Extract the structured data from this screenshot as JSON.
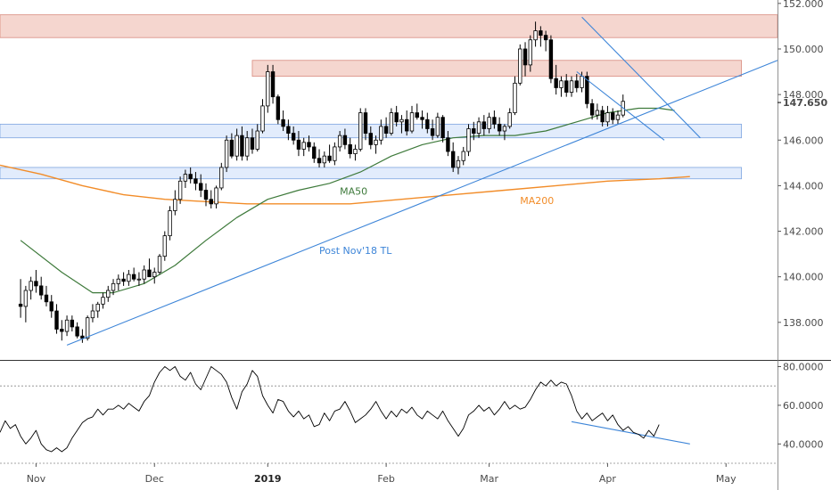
{
  "chart_data": {
    "type": "candlestick",
    "title": "",
    "colors": {
      "up_fill": "#ffffff",
      "down_fill": "#000000",
      "candle_stroke": "#000000",
      "ma50": "#3e7a3b",
      "ma200": "#f28c28",
      "trendline": "#3d85d8",
      "rsi": "#000000",
      "resistance_zone": "#f3cfc7",
      "support_zone": "#dde9fb",
      "price_tag": "#000000"
    },
    "price_axis": {
      "ticks": [
        "152.000",
        "150.000",
        "148.000",
        "146.000",
        "144.000",
        "142.000",
        "140.000",
        "138.000"
      ],
      "tick_values": [
        152,
        150,
        148,
        146,
        144,
        142,
        140,
        138
      ],
      "ylim": [
        136.35,
        152.15
      ],
      "last_price": "147.650",
      "last_price_value": 147.65
    },
    "rsi_axis": {
      "ticks": [
        "80.0000",
        "60.0000",
        "40.0000"
      ],
      "tick_values": [
        80,
        60,
        40
      ],
      "ylim": [
        30,
        83
      ],
      "ref_lines": [
        70,
        30
      ]
    },
    "x_axis": {
      "labels": [
        "Nov",
        "Dec",
        "2019",
        "Feb",
        "Mar",
        "Apr",
        "May"
      ],
      "label_index": [
        3,
        26,
        48,
        71,
        91,
        114,
        137
      ],
      "bold_label": "2019",
      "xlim": [
        -4,
        147
      ]
    },
    "zones": [
      {
        "kind": "resistance",
        "from_index": -4,
        "to_index": 147,
        "low": 150.5,
        "high": 151.5
      },
      {
        "kind": "resistance",
        "from_index": 45,
        "to_index": 140,
        "low": 148.8,
        "high": 149.5
      },
      {
        "kind": "support",
        "from_index": -4,
        "to_index": 140,
        "low": 146.1,
        "high": 146.7
      },
      {
        "kind": "support",
        "from_index": -4,
        "to_index": 140,
        "low": 144.3,
        "high": 144.8
      }
    ],
    "annotations": [
      {
        "text": "MA50",
        "index": 62,
        "value": 143.6,
        "color_key": "ma50"
      },
      {
        "text": "MA200",
        "index": 97,
        "value": 143.2,
        "color_key": "ma200"
      },
      {
        "text": "Post Nov'18 TL",
        "index": 58,
        "value": 141.0,
        "color_key": "trendline"
      }
    ],
    "trendlines": [
      {
        "name": "Post Nov'18 TL",
        "points": [
          [
            9,
            137.0
          ],
          [
            147,
            149.5
          ]
        ],
        "color_key": "trendline"
      },
      {
        "name": "channel-upper",
        "points": [
          [
            109,
            151.4
          ],
          [
            132,
            146.1
          ]
        ],
        "color_key": "trendline"
      },
      {
        "name": "channel-lower",
        "points": [
          [
            108,
            149.0
          ],
          [
            125,
            146.0
          ]
        ],
        "color_key": "trendline"
      },
      {
        "name": "rsi-divergence",
        "points": [
          [
            107,
            51.5
          ],
          [
            130,
            40.0
          ]
        ],
        "color_key": "trendline",
        "pane": "rsi"
      }
    ],
    "ohlc": [
      [
        138.8,
        139.9,
        138.2,
        138.7
      ],
      [
        138.7,
        139.6,
        138.0,
        139.4
      ],
      [
        139.4,
        140.0,
        139.0,
        139.8
      ],
      [
        139.8,
        140.3,
        139.3,
        139.6
      ],
      [
        139.6,
        140.0,
        139.0,
        139.2
      ],
      [
        139.2,
        139.6,
        138.7,
        138.9
      ],
      [
        138.9,
        139.2,
        138.2,
        138.5
      ],
      [
        138.5,
        138.8,
        137.5,
        137.7
      ],
      [
        137.7,
        138.1,
        137.2,
        137.6
      ],
      [
        137.6,
        138.3,
        137.4,
        138.1
      ],
      [
        138.1,
        138.3,
        137.6,
        137.8
      ],
      [
        137.8,
        138.0,
        137.3,
        137.4
      ],
      [
        137.4,
        137.7,
        137.1,
        137.3
      ],
      [
        137.3,
        138.3,
        137.2,
        138.2
      ],
      [
        138.2,
        138.8,
        138.0,
        138.5
      ],
      [
        138.5,
        138.9,
        138.2,
        138.8
      ],
      [
        138.8,
        139.3,
        138.6,
        139.1
      ],
      [
        139.1,
        139.6,
        138.9,
        139.4
      ],
      [
        139.4,
        139.9,
        139.2,
        139.7
      ],
      [
        139.7,
        140.1,
        139.4,
        139.9
      ],
      [
        139.9,
        140.2,
        139.6,
        139.8
      ],
      [
        139.8,
        140.3,
        139.6,
        140.1
      ],
      [
        140.1,
        140.4,
        139.8,
        139.9
      ],
      [
        139.9,
        140.2,
        139.6,
        139.9
      ],
      [
        139.9,
        140.5,
        139.7,
        140.3
      ],
      [
        140.3,
        140.8,
        140.1,
        140.0
      ],
      [
        140.0,
        140.4,
        139.7,
        140.2
      ],
      [
        140.2,
        141.0,
        140.1,
        140.9
      ],
      [
        140.9,
        142.0,
        140.7,
        141.8
      ],
      [
        141.8,
        143.1,
        141.6,
        142.9
      ],
      [
        142.9,
        143.8,
        142.7,
        143.4
      ],
      [
        143.4,
        144.4,
        143.2,
        144.2
      ],
      [
        144.2,
        144.7,
        143.9,
        144.5
      ],
      [
        144.5,
        144.8,
        144.1,
        144.3
      ],
      [
        144.3,
        144.6,
        143.8,
        144.1
      ],
      [
        144.1,
        144.5,
        143.5,
        143.8
      ],
      [
        143.8,
        144.1,
        143.1,
        143.4
      ],
      [
        143.4,
        143.8,
        143.0,
        143.2
      ],
      [
        143.2,
        144.0,
        143.0,
        143.9
      ],
      [
        143.9,
        145.0,
        143.8,
        144.8
      ],
      [
        144.8,
        146.2,
        144.6,
        146.0
      ],
      [
        146.0,
        146.3,
        145.2,
        145.3
      ],
      [
        145.3,
        146.5,
        145.1,
        146.2
      ],
      [
        146.2,
        146.6,
        145.1,
        145.3
      ],
      [
        145.3,
        146.4,
        145.1,
        146.1
      ],
      [
        146.1,
        146.5,
        145.4,
        145.6
      ],
      [
        145.6,
        146.7,
        145.5,
        146.4
      ],
      [
        146.4,
        147.8,
        146.3,
        147.5
      ],
      [
        147.5,
        149.3,
        147.2,
        149.0
      ],
      [
        149.0,
        149.3,
        147.6,
        147.9
      ],
      [
        147.9,
        148.0,
        146.7,
        146.9
      ],
      [
        146.9,
        147.3,
        146.4,
        146.6
      ],
      [
        146.6,
        146.9,
        146.0,
        146.3
      ],
      [
        146.3,
        146.6,
        145.8,
        146.0
      ],
      [
        146.0,
        146.4,
        145.3,
        145.6
      ],
      [
        145.6,
        146.1,
        145.3,
        145.9
      ],
      [
        145.9,
        146.2,
        145.5,
        145.7
      ],
      [
        145.7,
        145.9,
        145.0,
        145.2
      ],
      [
        145.2,
        145.6,
        144.8,
        145.0
      ],
      [
        145.0,
        145.5,
        144.8,
        145.3
      ],
      [
        145.3,
        145.8,
        145.0,
        145.1
      ],
      [
        145.1,
        145.9,
        144.9,
        145.7
      ],
      [
        145.7,
        146.4,
        145.5,
        146.2
      ],
      [
        146.2,
        146.5,
        145.6,
        145.8
      ],
      [
        145.8,
        146.1,
        145.2,
        145.4
      ],
      [
        145.4,
        145.8,
        145.1,
        145.6
      ],
      [
        145.6,
        147.4,
        145.5,
        147.2
      ],
      [
        147.2,
        147.4,
        146.0,
        146.3
      ],
      [
        146.3,
        146.6,
        145.6,
        145.8
      ],
      [
        145.8,
        146.2,
        145.4,
        146.0
      ],
      [
        146.0,
        146.9,
        145.8,
        146.6
      ],
      [
        146.6,
        147.0,
        146.1,
        146.3
      ],
      [
        146.3,
        147.4,
        146.2,
        147.2
      ],
      [
        147.2,
        147.5,
        146.6,
        146.8
      ],
      [
        146.8,
        147.1,
        146.3,
        146.9
      ],
      [
        146.9,
        147.3,
        146.2,
        146.4
      ],
      [
        146.4,
        147.5,
        146.3,
        147.2
      ],
      [
        147.2,
        147.6,
        146.9,
        147.0
      ],
      [
        147.0,
        147.3,
        146.5,
        146.9
      ],
      [
        146.9,
        147.2,
        146.3,
        146.5
      ],
      [
        146.5,
        146.9,
        146.0,
        146.2
      ],
      [
        146.2,
        147.2,
        146.1,
        147.0
      ],
      [
        147.0,
        147.1,
        145.9,
        146.1
      ],
      [
        146.1,
        146.4,
        145.3,
        145.5
      ],
      [
        145.5,
        145.9,
        144.6,
        144.8
      ],
      [
        144.8,
        145.3,
        144.5,
        145.1
      ],
      [
        145.1,
        145.7,
        144.9,
        145.5
      ],
      [
        145.5,
        146.7,
        145.3,
        146.5
      ],
      [
        146.5,
        146.8,
        146.0,
        146.3
      ],
      [
        146.3,
        147.0,
        146.1,
        146.8
      ],
      [
        146.8,
        147.1,
        146.2,
        146.5
      ],
      [
        146.5,
        147.2,
        146.3,
        147.0
      ],
      [
        147.0,
        147.3,
        146.5,
        146.7
      ],
      [
        146.7,
        147.0,
        146.2,
        146.4
      ],
      [
        146.4,
        146.7,
        146.0,
        146.6
      ],
      [
        146.6,
        147.4,
        146.5,
        147.2
      ],
      [
        147.2,
        148.8,
        147.1,
        148.5
      ],
      [
        148.5,
        150.2,
        148.4,
        150.0
      ],
      [
        150.0,
        150.3,
        148.8,
        149.3
      ],
      [
        149.3,
        150.6,
        149.0,
        150.4
      ],
      [
        150.4,
        151.2,
        150.1,
        150.8
      ],
      [
        150.8,
        151.0,
        150.1,
        150.6
      ],
      [
        150.6,
        150.8,
        149.9,
        150.4
      ],
      [
        150.4,
        150.6,
        148.5,
        148.7
      ],
      [
        148.7,
        149.3,
        148.0,
        148.3
      ],
      [
        148.3,
        148.8,
        147.9,
        148.6
      ],
      [
        148.6,
        148.9,
        147.9,
        148.1
      ],
      [
        148.1,
        148.8,
        147.9,
        148.6
      ],
      [
        148.6,
        148.9,
        148.1,
        148.3
      ],
      [
        148.3,
        149.0,
        148.1,
        148.8
      ],
      [
        148.8,
        149.0,
        147.4,
        147.6
      ],
      [
        147.6,
        147.8,
        146.9,
        147.1
      ],
      [
        147.1,
        147.6,
        146.9,
        147.3
      ],
      [
        147.3,
        147.5,
        146.6,
        146.8
      ],
      [
        146.8,
        147.5,
        146.6,
        147.2
      ],
      [
        147.2,
        147.4,
        146.7,
        146.9
      ],
      [
        146.9,
        147.3,
        146.7,
        147.1
      ],
      [
        147.1,
        148.0,
        147.0,
        147.7
      ]
    ],
    "ohlc_start_index": 0,
    "ma50": [
      [
        0,
        141.6
      ],
      [
        8,
        140.2
      ],
      [
        14,
        139.3
      ],
      [
        18,
        139.3
      ],
      [
        24,
        139.7
      ],
      [
        30,
        140.5
      ],
      [
        36,
        141.6
      ],
      [
        42,
        142.6
      ],
      [
        48,
        143.4
      ],
      [
        54,
        143.8
      ],
      [
        60,
        144.1
      ],
      [
        66,
        144.6
      ],
      [
        72,
        145.3
      ],
      [
        78,
        145.8
      ],
      [
        84,
        146.1
      ],
      [
        90,
        146.2
      ],
      [
        96,
        146.2
      ],
      [
        102,
        146.4
      ],
      [
        108,
        146.8
      ],
      [
        114,
        147.2
      ],
      [
        120,
        147.4
      ],
      [
        124,
        147.4
      ],
      [
        127,
        147.3
      ]
    ],
    "ma200": [
      [
        -4,
        144.9
      ],
      [
        4,
        144.5
      ],
      [
        12,
        144.0
      ],
      [
        20,
        143.6
      ],
      [
        28,
        143.4
      ],
      [
        36,
        143.3
      ],
      [
        44,
        143.2
      ],
      [
        54,
        143.2
      ],
      [
        64,
        143.2
      ],
      [
        74,
        143.4
      ],
      [
        84,
        143.6
      ],
      [
        94,
        143.8
      ],
      [
        104,
        144.0
      ],
      [
        114,
        144.2
      ],
      [
        124,
        144.3
      ],
      [
        130,
        144.4
      ]
    ],
    "rsi": [
      [
        -4,
        46
      ],
      [
        -3,
        52
      ],
      [
        -2,
        48
      ],
      [
        -1,
        50
      ],
      [
        0,
        44
      ],
      [
        1,
        40
      ],
      [
        2,
        43
      ],
      [
        3,
        47
      ],
      [
        4,
        40
      ],
      [
        5,
        37
      ],
      [
        6,
        36
      ],
      [
        7,
        38
      ],
      [
        8,
        36
      ],
      [
        9,
        38
      ],
      [
        10,
        43
      ],
      [
        11,
        47
      ],
      [
        12,
        51
      ],
      [
        13,
        53
      ],
      [
        14,
        54
      ],
      [
        15,
        58
      ],
      [
        16,
        55
      ],
      [
        17,
        58
      ],
      [
        18,
        58
      ],
      [
        19,
        60
      ],
      [
        20,
        58
      ],
      [
        21,
        61
      ],
      [
        22,
        59
      ],
      [
        23,
        57
      ],
      [
        24,
        62
      ],
      [
        25,
        65
      ],
      [
        26,
        72
      ],
      [
        27,
        77
      ],
      [
        28,
        80
      ],
      [
        29,
        78
      ],
      [
        30,
        80
      ],
      [
        31,
        75
      ],
      [
        32,
        73
      ],
      [
        33,
        77
      ],
      [
        34,
        71
      ],
      [
        35,
        68
      ],
      [
        36,
        74
      ],
      [
        37,
        80
      ],
      [
        38,
        78
      ],
      [
        39,
        76
      ],
      [
        40,
        72
      ],
      [
        41,
        64
      ],
      [
        42,
        58
      ],
      [
        43,
        67
      ],
      [
        44,
        71
      ],
      [
        45,
        78
      ],
      [
        46,
        75
      ],
      [
        47,
        65
      ],
      [
        48,
        60
      ],
      [
        49,
        56
      ],
      [
        50,
        63
      ],
      [
        51,
        62
      ],
      [
        52,
        57
      ],
      [
        53,
        54
      ],
      [
        54,
        57
      ],
      [
        55,
        53
      ],
      [
        56,
        55
      ],
      [
        57,
        49
      ],
      [
        58,
        50
      ],
      [
        59,
        56
      ],
      [
        60,
        52
      ],
      [
        61,
        57
      ],
      [
        62,
        58
      ],
      [
        63,
        62
      ],
      [
        64,
        57
      ],
      [
        65,
        51
      ],
      [
        66,
        53
      ],
      [
        67,
        55
      ],
      [
        68,
        58
      ],
      [
        69,
        62
      ],
      [
        70,
        57
      ],
      [
        71,
        53
      ],
      [
        72,
        57
      ],
      [
        73,
        54
      ],
      [
        74,
        58
      ],
      [
        75,
        56
      ],
      [
        76,
        59
      ],
      [
        77,
        55
      ],
      [
        78,
        53
      ],
      [
        79,
        57
      ],
      [
        80,
        55
      ],
      [
        81,
        53
      ],
      [
        82,
        57
      ],
      [
        83,
        52
      ],
      [
        84,
        48
      ],
      [
        85,
        44
      ],
      [
        86,
        48
      ],
      [
        87,
        55
      ],
      [
        88,
        57
      ],
      [
        89,
        60
      ],
      [
        90,
        57
      ],
      [
        91,
        59
      ],
      [
        92,
        55
      ],
      [
        93,
        58
      ],
      [
        94,
        62
      ],
      [
        95,
        58
      ],
      [
        96,
        60
      ],
      [
        97,
        58
      ],
      [
        98,
        59
      ],
      [
        99,
        63
      ],
      [
        100,
        68
      ],
      [
        101,
        72
      ],
      [
        102,
        70
      ],
      [
        103,
        73
      ],
      [
        104,
        70
      ],
      [
        105,
        72
      ],
      [
        106,
        71
      ],
      [
        107,
        65
      ],
      [
        108,
        57
      ],
      [
        109,
        53
      ],
      [
        110,
        56
      ],
      [
        111,
        52
      ],
      [
        112,
        54
      ],
      [
        113,
        56
      ],
      [
        114,
        52
      ],
      [
        115,
        55
      ],
      [
        116,
        50
      ],
      [
        117,
        47
      ],
      [
        118,
        49
      ],
      [
        119,
        46
      ],
      [
        120,
        45
      ],
      [
        121,
        43
      ],
      [
        122,
        47
      ],
      [
        123,
        44
      ],
      [
        124,
        50
      ]
    ]
  }
}
